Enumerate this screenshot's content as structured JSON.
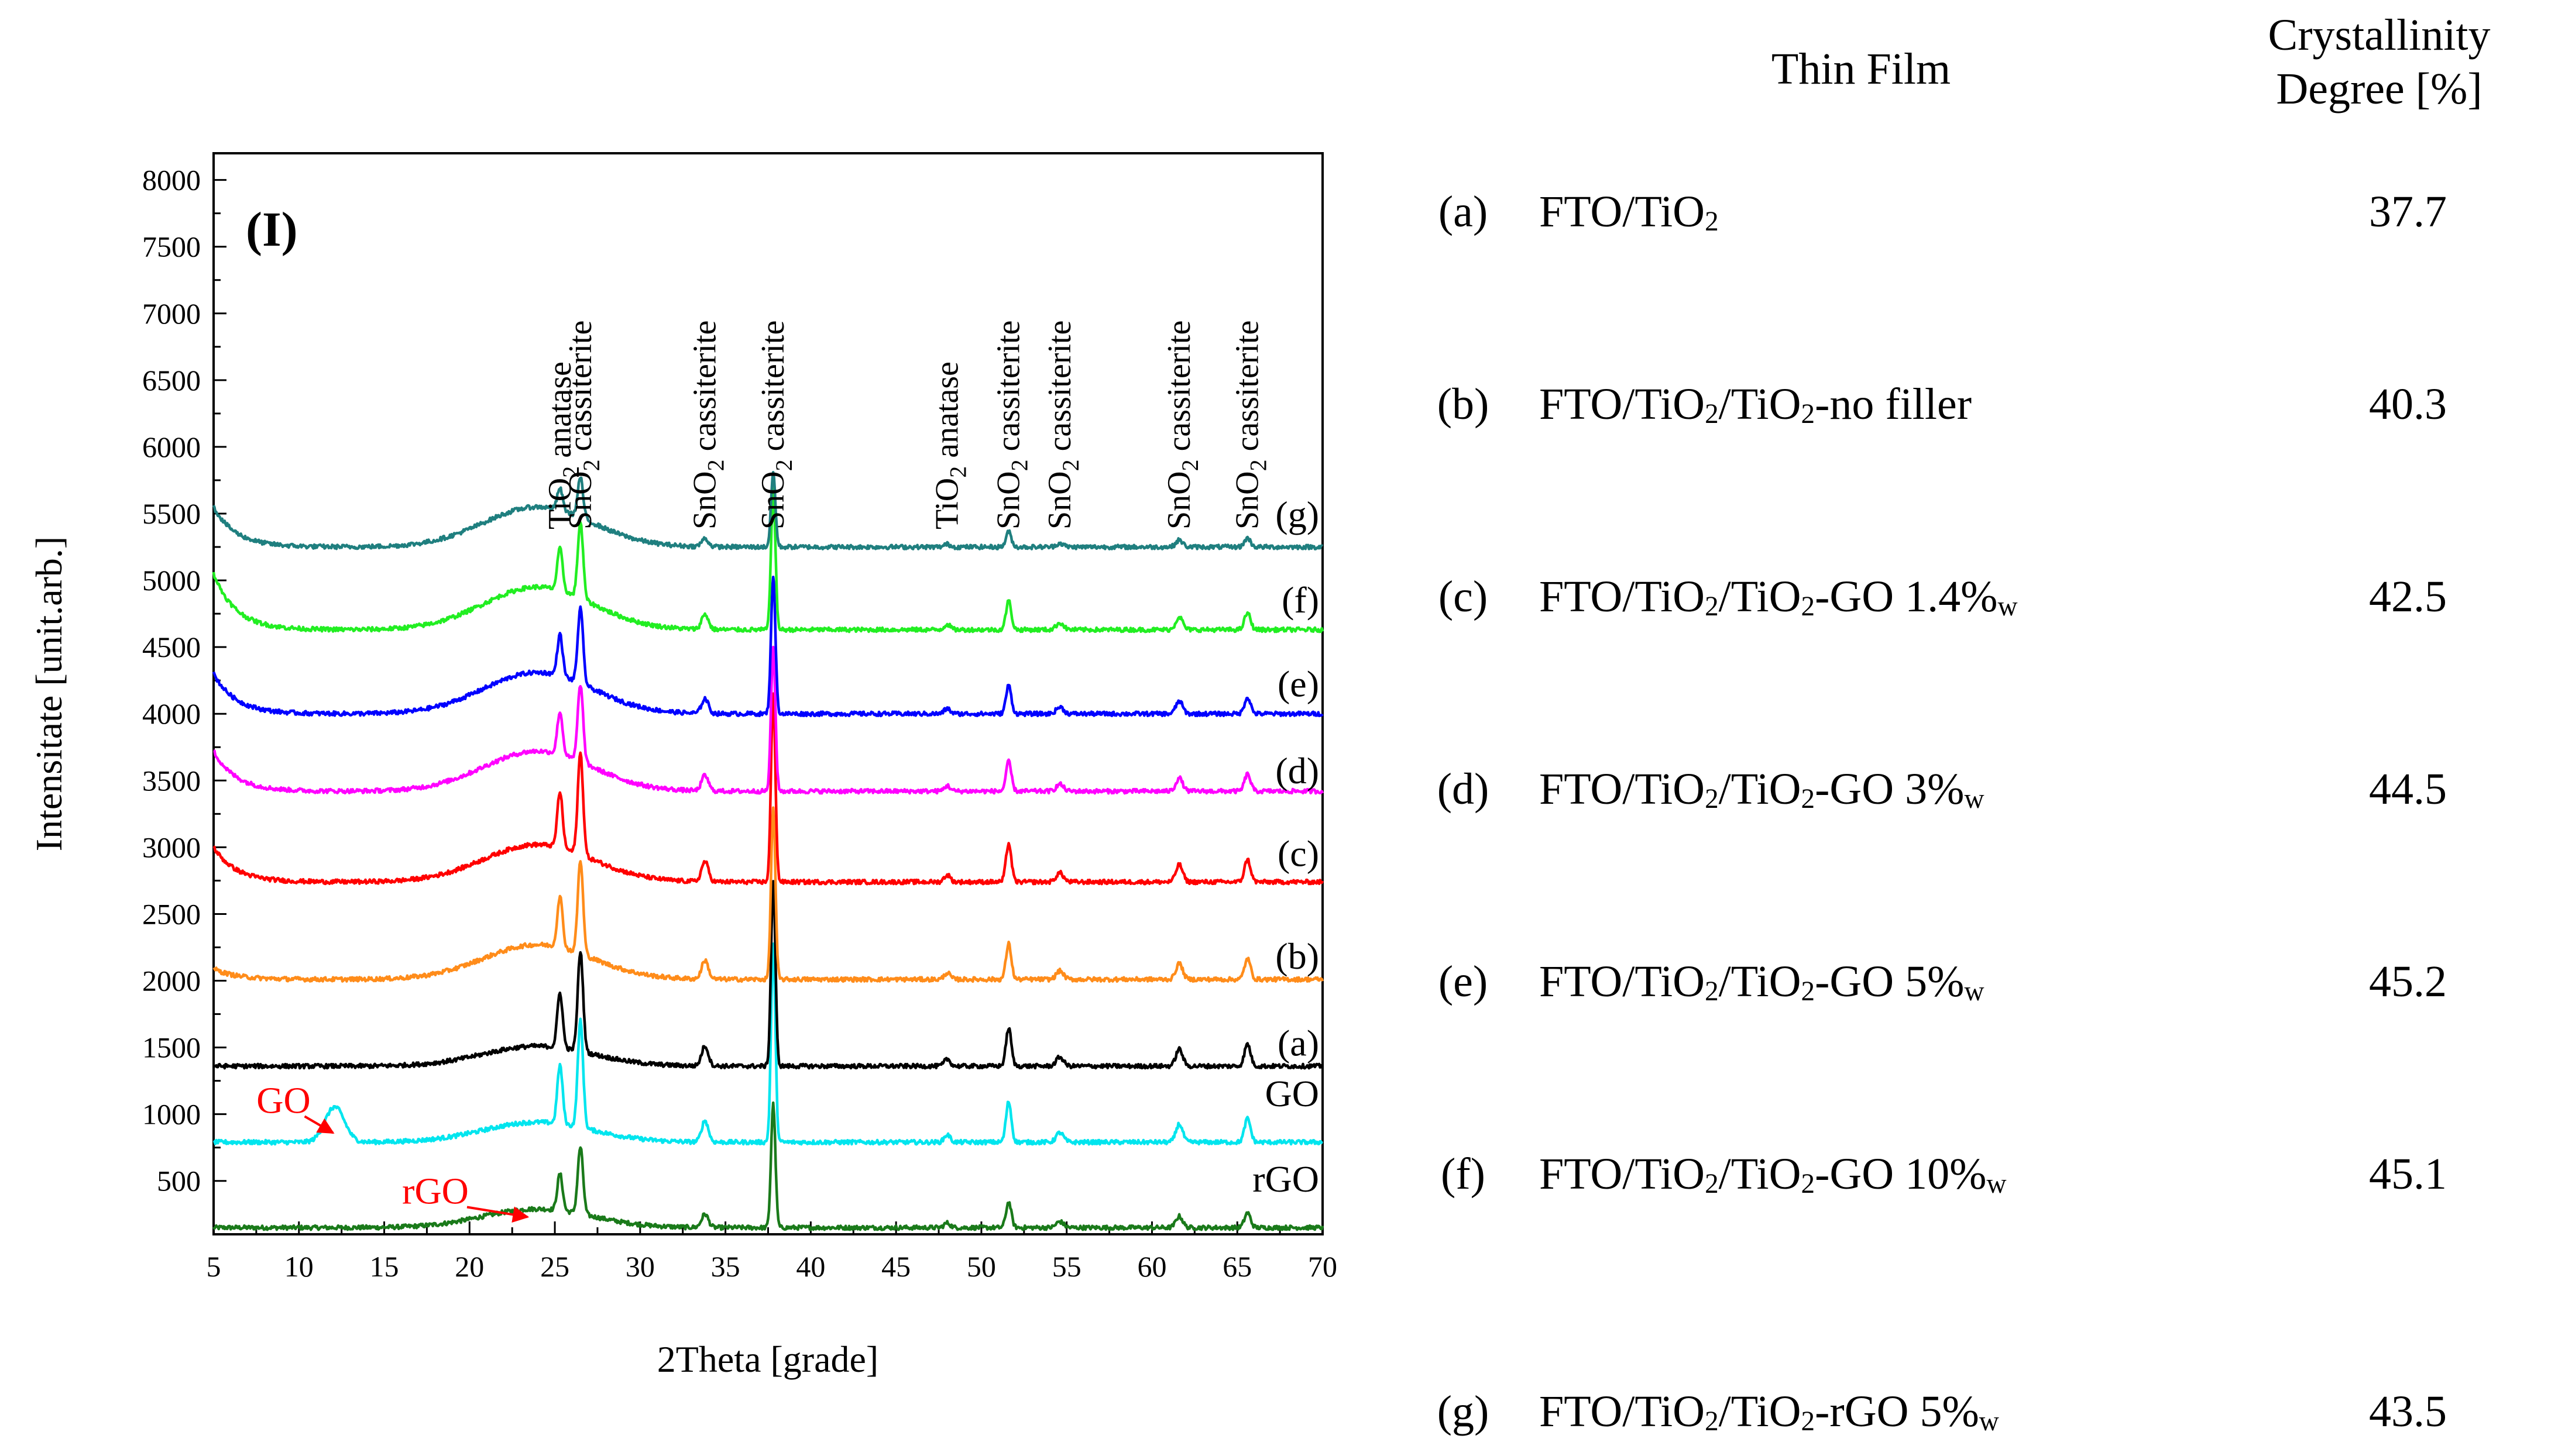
{
  "chart_data": {
    "type": "line",
    "panel_label": "(I)",
    "xlabel": "2Theta [grade]",
    "ylabel": "Intensitate [unit.arb.]",
    "xlim": [
      5,
      70
    ],
    "ylim": [
      100,
      8200
    ],
    "xticks": [
      5,
      10,
      15,
      20,
      25,
      30,
      35,
      40,
      45,
      50,
      55,
      60,
      65,
      70
    ],
    "yticks": [
      500,
      1000,
      1500,
      2000,
      2500,
      3000,
      3500,
      4000,
      4500,
      5000,
      5500,
      6000,
      6500,
      7000,
      7500,
      8000
    ],
    "common_peaks": [
      {
        "x": 25.3,
        "h": 0.55,
        "w": 0.22
      },
      {
        "x": 26.5,
        "h": 1.0,
        "w": 0.22
      },
      {
        "x": 33.8,
        "h": 0.2,
        "w": 0.28
      },
      {
        "x": 37.8,
        "h": 1.85,
        "w": 0.18
      },
      {
        "x": 48.0,
        "h": 0.07,
        "w": 0.25
      },
      {
        "x": 51.6,
        "h": 0.38,
        "w": 0.22
      },
      {
        "x": 54.6,
        "h": 0.09,
        "w": 0.3
      },
      {
        "x": 61.6,
        "h": 0.17,
        "w": 0.28
      },
      {
        "x": 65.6,
        "h": 0.22,
        "w": 0.25
      }
    ],
    "series": [
      {
        "name": "rGO",
        "label": "rGO",
        "color": "#1a7a1a",
        "baseline": 150,
        "scale": 500,
        "hump": 140,
        "start_rise": 0,
        "extra": [],
        "label_y": 420
      },
      {
        "name": "GO",
        "label": "GO",
        "color": "#00e5ee",
        "baseline": 790,
        "scale": 800,
        "hump": 150,
        "start_rise": 0,
        "extra": [
          {
            "x": 12.1,
            "h": 0.33,
            "w": 0.8
          }
        ],
        "label_y": 1060
      },
      {
        "name": "a",
        "label": "(a)",
        "color": "#000000",
        "baseline": 1360,
        "scale": 750,
        "hump": 150,
        "start_rise": 0,
        "extra": [],
        "label_y": 1440
      },
      {
        "name": "b",
        "label": "(b)",
        "color": "#ff8c1a",
        "baseline": 2010,
        "scale": 700,
        "hump": 260,
        "start_rise": 80,
        "extra": [],
        "label_y": 2090
      },
      {
        "name": "c",
        "label": "(c)",
        "color": "#ff0000",
        "baseline": 2740,
        "scale": 760,
        "hump": 280,
        "start_rise": 260,
        "extra": [],
        "label_y": 2860
      },
      {
        "name": "d",
        "label": "(d)",
        "color": "#ff00ff",
        "baseline": 3420,
        "scale": 580,
        "hump": 300,
        "start_rise": 300,
        "extra": [],
        "label_y": 3480
      },
      {
        "name": "e",
        "label": "(e)",
        "color": "#0000ff",
        "baseline": 4000,
        "scale": 560,
        "hump": 310,
        "start_rise": 300,
        "extra": [],
        "label_y": 4130
      },
      {
        "name": "f",
        "label": "(f)",
        "color": "#22ee22",
        "baseline": 4630,
        "scale": 570,
        "hump": 320,
        "start_rise": 420,
        "extra": [],
        "label_y": 4760
      },
      {
        "name": "g",
        "label": "(g)",
        "color": "#1f7f7f",
        "baseline": 5250,
        "scale": 300,
        "hump": 300,
        "start_rise": 300,
        "extra": [],
        "label_y": 5400
      }
    ],
    "phase_labels": [
      {
        "x": 25.3,
        "text": "TiO",
        "sub": "2",
        "rest": " anatase"
      },
      {
        "x": 26.5,
        "text": "SnO",
        "sub": "2",
        "rest": " cassiterite"
      },
      {
        "x": 33.8,
        "text": "SnO",
        "sub": "2",
        "rest": " cassiterite"
      },
      {
        "x": 37.8,
        "text": "SnO",
        "sub": "2",
        "rest": " cassiterite"
      },
      {
        "x": 48.0,
        "text": "TiO",
        "sub": "2",
        "rest": " anatase"
      },
      {
        "x": 51.6,
        "text": "SnO",
        "sub": "2",
        "rest": " cassiterite"
      },
      {
        "x": 54.6,
        "text": "SnO",
        "sub": "2",
        "rest": " cassiterite"
      },
      {
        "x": 61.6,
        "text": "SnO",
        "sub": "2",
        "rest": " cassiterite"
      },
      {
        "x": 65.6,
        "text": "SnO",
        "sub": "2",
        "rest": " cassiterite"
      }
    ],
    "annotations": [
      {
        "text": "GO",
        "color": "#ff0000",
        "text_x": 9.1,
        "text_y": 1010,
        "to_x": 12.0,
        "to_y": 860
      },
      {
        "text": "rGO",
        "color": "#ff0000",
        "text_x": 18.0,
        "text_y": 330,
        "to_x": 23.4,
        "to_y": 230
      }
    ]
  },
  "table": {
    "header_film": "Thin Film",
    "header_degree_line1": "Crystallinity",
    "header_degree_line2": "Degree [%]",
    "rows": [
      {
        "id": "(a)",
        "film": "FTO/TiO₂",
        "value": "37.7"
      },
      {
        "id": "(b)",
        "film": "FTO/TiO₂/TiO₂-no filler",
        "value": "40.3"
      },
      {
        "id": "(c)",
        "film": "FTO/TiO₂/TiO₂-GO 1.4%w",
        "value": "42.5"
      },
      {
        "id": "(d)",
        "film": "FTO/TiO₂/TiO₂-GO 3%w",
        "value": "44.5"
      },
      {
        "id": "(e)",
        "film": "FTO/TiO₂/TiO₂-GO 5%w",
        "value": "45.2"
      },
      {
        "id": "(f)",
        "film": "FTO/TiO₂/TiO₂-GO 10%w",
        "value": "45.1"
      },
      {
        "id": "(g)",
        "film": "FTO/TiO₂/TiO₂-rGO 5%w",
        "value": "43.5"
      }
    ]
  }
}
